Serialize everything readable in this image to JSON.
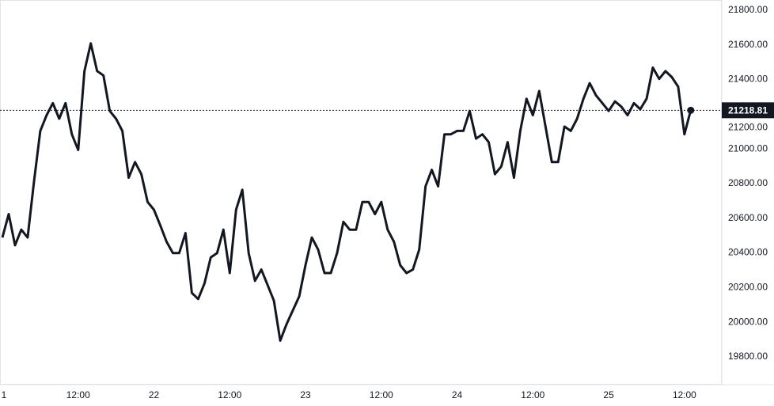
{
  "chart_data": {
    "type": "line",
    "title": "",
    "xlabel": "",
    "ylabel": "",
    "ylim": [
      19636,
      21855
    ],
    "grid": false,
    "line_color": "#131722",
    "price_label_bg": "#131722",
    "y_ticks": [
      "21800.00",
      "21600.00",
      "21400.00",
      "21200.00",
      "21000.00",
      "20800.00",
      "20600.00",
      "20400.00",
      "20200.00",
      "20000.00",
      "19800.00"
    ],
    "x_ticks": [
      "1",
      "12:00",
      "22",
      "12:00",
      "23",
      "12:00",
      "24",
      "12:00",
      "25",
      "12:00"
    ],
    "current_price": "21218.81",
    "series": [
      {
        "x_start": "21 00:00",
        "x_step_hours": 1,
        "values": [
          20485,
          20620,
          20440,
          20530,
          20485,
          20805,
          21100,
          21190,
          21260,
          21170,
          21260,
          21080,
          20990,
          21445,
          21605,
          21445,
          21420,
          21215,
          21170,
          21100,
          20830,
          20920,
          20850,
          20690,
          20645,
          20555,
          20460,
          20395,
          20395,
          20510,
          20165,
          20130,
          20220,
          20370,
          20395,
          20530,
          20280,
          20645,
          20760,
          20395,
          20235,
          20300,
          20210,
          20120,
          19890,
          19985,
          20065,
          20145,
          20325,
          20485,
          20415,
          20280,
          20280,
          20395,
          20575,
          20530,
          20530,
          20690,
          20690,
          20620,
          20690,
          20530,
          20460,
          20325,
          20280,
          20300,
          20415,
          20780,
          20875,
          20780,
          21080,
          21080,
          21100,
          21100,
          21215,
          21055,
          21080,
          21035,
          20850,
          20895,
          21035,
          20830,
          21100,
          21285,
          21190,
          21330,
          21125,
          20920,
          20920,
          21125,
          21100,
          21170,
          21285,
          21375,
          21305,
          21260,
          21215,
          21270,
          21240,
          21190,
          21260,
          21225,
          21285,
          21465,
          21400,
          21445,
          21410,
          21355,
          21080,
          21218.81
        ]
      }
    ]
  }
}
